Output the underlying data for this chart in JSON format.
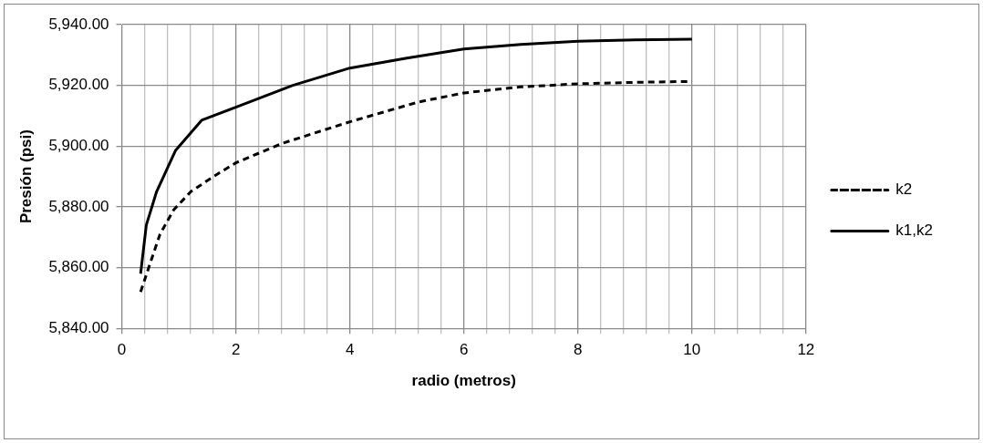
{
  "chart_data": {
    "type": "line",
    "xlabel": "radio (metros)",
    "ylabel": "Presión (psi)",
    "legend": "right",
    "grid": true,
    "marker": "none",
    "xlim": [
      0,
      12
    ],
    "xticks": [
      0,
      {
        "value": 0.4,
        "label": null
      },
      {
        "value": 0.8,
        "label": null
      },
      {
        "value": 1.2,
        "label": null
      },
      {
        "value": 1.6,
        "label": null
      },
      2,
      {
        "value": 2.4,
        "label": null
      },
      {
        "value": 2.8,
        "label": null
      },
      {
        "value": 3.2,
        "label": null
      },
      {
        "value": 3.6,
        "label": null
      },
      4,
      {
        "value": 4.4,
        "label": null
      },
      {
        "value": 4.8,
        "label": null
      },
      {
        "value": 5.2,
        "label": null
      },
      {
        "value": 5.6,
        "label": null
      },
      6,
      {
        "value": 6.4,
        "label": null
      },
      {
        "value": 6.8,
        "label": null
      },
      {
        "value": 7.2,
        "label": null
      },
      {
        "value": 7.6,
        "label": null
      },
      8,
      {
        "value": 8.4,
        "label": null
      },
      {
        "value": 8.8,
        "label": null
      },
      {
        "value": 9.2,
        "label": null
      },
      {
        "value": 9.6,
        "label": null
      },
      10,
      {
        "value": 10.4,
        "label": null
      },
      {
        "value": 10.8,
        "label": null
      },
      {
        "value": 11.2,
        "label": null
      },
      {
        "value": 11.6,
        "label": null
      },
      12
    ],
    "ylim": [
      5840,
      5940
    ],
    "yticks": [
      {
        "value": 5840,
        "label": "5,840.00"
      },
      {
        "value": 5860,
        "label": "5,860.00"
      },
      {
        "value": 5880,
        "label": "5,880.00"
      },
      {
        "value": 5900,
        "label": "5,900.00"
      },
      {
        "value": 5920,
        "label": "5,920.00"
      },
      {
        "value": 5940,
        "label": "5,940.00"
      }
    ],
    "series": [
      {
        "name": "k2",
        "color": "#000000",
        "line_style": "dashed",
        "x": [
          0.33,
          0.49,
          0.67,
          0.91,
          1.21,
          1.61,
          2,
          2.83,
          4,
          5.2,
          6,
          7,
          8,
          9,
          10
        ],
        "values": [
          5852,
          5861,
          5871,
          5879,
          5885,
          5890,
          5894.5,
          5901,
          5908,
          5914.5,
          5917.5,
          5919.5,
          5920.5,
          5921,
          5921.3
        ]
      },
      {
        "name": "k1,k2",
        "color": "#000000",
        "line_style": "solid",
        "x": [
          0.33,
          0.43,
          0.61,
          0.94,
          1.4,
          2,
          3,
          4,
          5,
          6,
          7,
          8,
          9,
          10
        ],
        "values": [
          5858,
          5874,
          5885,
          5898.5,
          5908.5,
          5912.8,
          5920,
          5925.7,
          5929,
          5932,
          5933.5,
          5934.5,
          5935,
          5935.2
        ]
      }
    ]
  }
}
